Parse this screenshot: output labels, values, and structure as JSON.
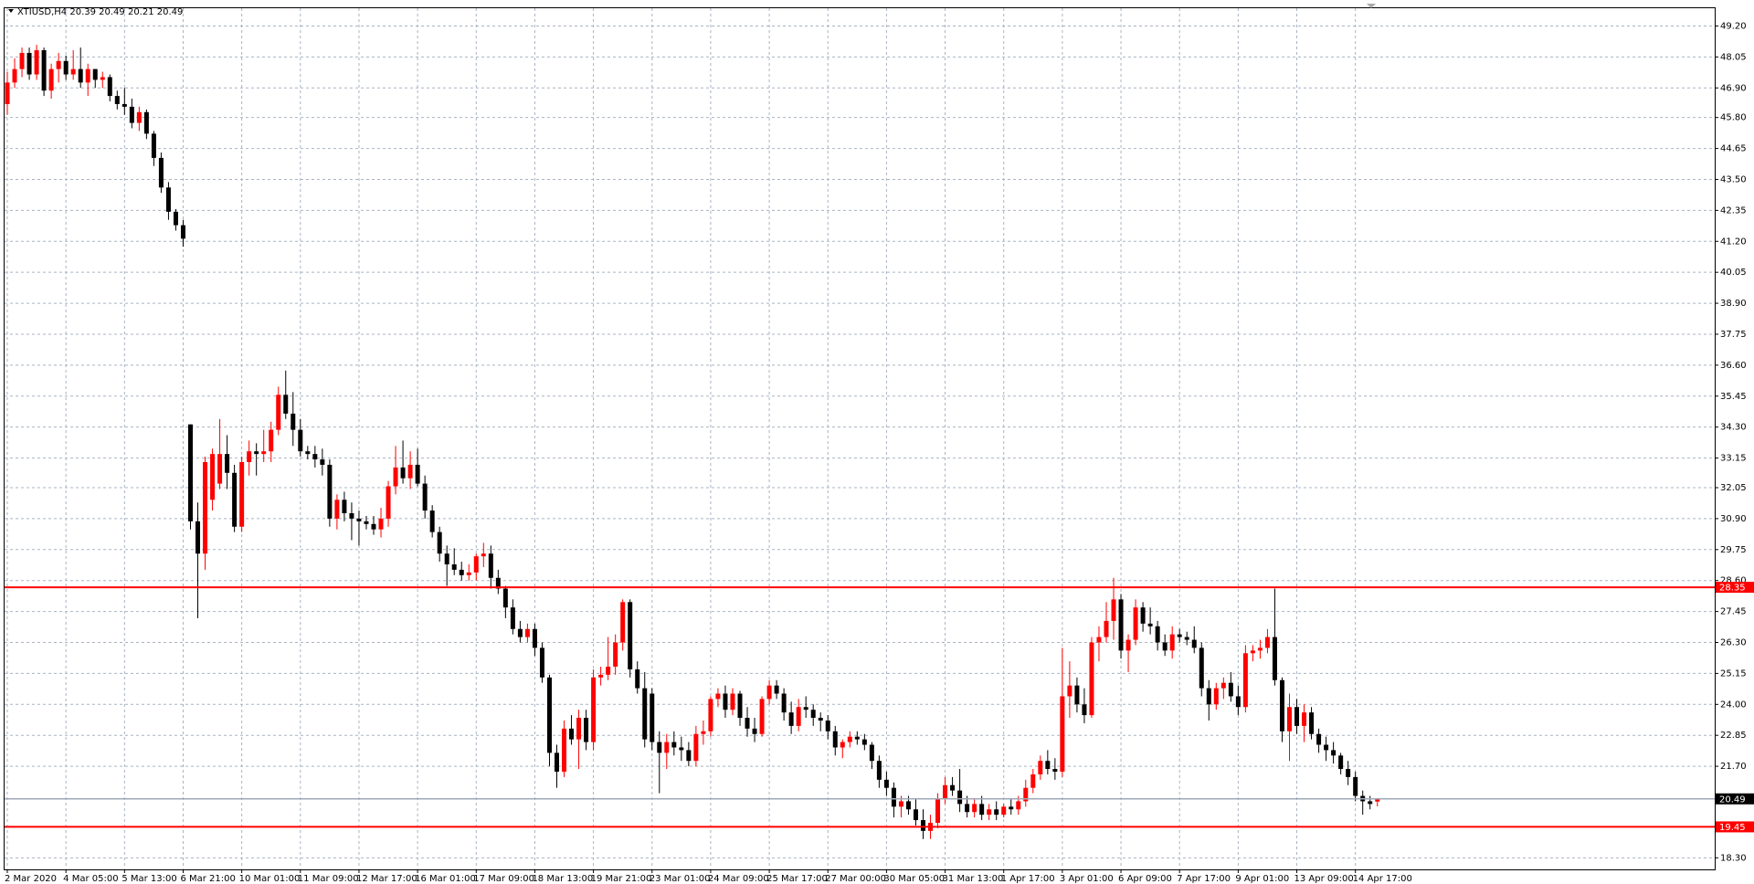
{
  "chart_data": {
    "type": "candlestick",
    "title": "XTIUSD,H4  20.39 20.49 20.21 20.49",
    "up_color": "#ff0000",
    "down_color": "#000000",
    "grid": true,
    "grid_color": "#a9b3c2",
    "ylim": [
      17.87,
      49.86
    ],
    "yticks": [
      {
        "value": 49.2,
        "label": "49.20"
      },
      48.05,
      {
        "value": 46.9,
        "label": "46.90"
      },
      {
        "value": 45.8,
        "label": "45.80"
      },
      44.65,
      {
        "value": 43.5,
        "label": "43.50"
      },
      42.35,
      {
        "value": 41.2,
        "label": "41.20"
      },
      40.05,
      {
        "value": 38.9,
        "label": "38.90"
      },
      37.75,
      {
        "value": 36.6,
        "label": "36.60"
      },
      35.45,
      {
        "value": 34.3,
        "label": "34.30"
      },
      33.15,
      32.05,
      {
        "value": 30.9,
        "label": "30.90"
      },
      29.75,
      {
        "value": 28.6,
        "label": "28.60"
      },
      27.45,
      {
        "value": 26.3,
        "label": "26.30"
      },
      25.15,
      {
        "value": 24.0,
        "label": "24.00"
      },
      22.85,
      {
        "value": 21.7,
        "label": "21.70"
      },
      {
        "value": 18.3,
        "label": "18.30"
      }
    ],
    "xticks": [
      {
        "value": 0,
        "label": "2 Mar 2020"
      },
      {
        "value": 8,
        "label": "4 Mar 05:00"
      },
      {
        "value": 16,
        "label": "5 Mar 13:00"
      },
      {
        "value": 24,
        "label": "6 Mar 21:00"
      },
      {
        "value": 32,
        "label": "10 Mar 01:00"
      },
      {
        "value": 40,
        "label": "11 Mar 09:00"
      },
      {
        "value": 48,
        "label": "12 Mar 17:00"
      },
      {
        "value": 56,
        "label": "16 Mar 01:00"
      },
      {
        "value": 64,
        "label": "17 Mar 09:00"
      },
      {
        "value": 72,
        "label": "18 Mar 13:00"
      },
      {
        "value": 80,
        "label": "19 Mar 21:00"
      },
      {
        "value": 88,
        "label": "23 Mar 01:00"
      },
      {
        "value": 96,
        "label": "24 Mar 09:00"
      },
      {
        "value": 104,
        "label": "25 Mar 17:00"
      },
      {
        "value": 112,
        "label": "27 Mar 00:00"
      },
      {
        "value": 120,
        "label": "30 Mar 05:00"
      },
      {
        "value": 128,
        "label": "31 Mar 13:00"
      },
      {
        "value": 136,
        "label": "1 Apr 17:00"
      },
      {
        "value": 144,
        "label": "3 Apr 01:00"
      },
      {
        "value": 152,
        "label": "6 Apr 09:00"
      },
      {
        "value": 160,
        "label": "7 Apr 17:00"
      },
      {
        "value": 168,
        "label": "9 Apr 01:00"
      },
      {
        "value": 176,
        "label": "13 Apr 09:00"
      },
      {
        "value": 184,
        "label": "14 Apr 17:00"
      }
    ],
    "hlines": [
      {
        "value": 28.35,
        "color": "#ff0000"
      },
      {
        "value": 19.45,
        "color": "#ff0000"
      },
      {
        "value": 20.49,
        "color": "#a0a8b8"
      }
    ],
    "ohlc": [
      [
        46.3,
        47.5,
        45.9,
        47.1
      ],
      [
        47.1,
        48.0,
        46.9,
        47.6
      ],
      [
        47.6,
        48.4,
        47.3,
        48.2
      ],
      [
        48.2,
        48.4,
        47.2,
        47.4
      ],
      [
        47.4,
        48.5,
        47.2,
        48.3
      ],
      [
        48.3,
        48.4,
        46.6,
        46.8
      ],
      [
        46.8,
        47.8,
        46.5,
        47.6
      ],
      [
        47.6,
        48.2,
        47.1,
        47.9
      ],
      [
        47.9,
        48.1,
        47.2,
        47.4
      ],
      [
        47.4,
        48.3,
        47.2,
        47.6
      ],
      [
        47.6,
        48.4,
        46.9,
        47.1
      ],
      [
        47.1,
        47.8,
        46.6,
        47.6
      ],
      [
        47.6,
        47.6,
        46.9,
        47.2
      ],
      [
        47.2,
        47.5,
        46.9,
        47.3
      ],
      [
        47.3,
        47.4,
        46.4,
        46.6
      ],
      [
        46.6,
        46.8,
        46.1,
        46.3
      ],
      [
        46.3,
        46.9,
        45.9,
        46.2
      ],
      [
        46.2,
        46.5,
        45.4,
        45.6
      ],
      [
        45.6,
        46.2,
        45.3,
        46.0
      ],
      [
        46.0,
        46.1,
        45.0,
        45.2
      ],
      [
        45.2,
        45.3,
        44.0,
        44.3
      ],
      [
        44.3,
        44.5,
        43.0,
        43.2
      ],
      [
        43.2,
        43.4,
        42.0,
        42.3
      ],
      [
        42.3,
        42.4,
        41.6,
        41.8
      ],
      [
        41.8,
        42.0,
        41.0,
        41.3
      ],
      [
        34.4,
        34.4,
        30.5,
        30.8
      ],
      [
        30.8,
        31.5,
        27.2,
        29.6
      ],
      [
        29.6,
        33.2,
        29.0,
        33.0
      ],
      [
        31.6,
        33.5,
        31.2,
        33.3
      ],
      [
        32.2,
        34.6,
        32.0,
        33.3
      ],
      [
        33.3,
        34.0,
        32.0,
        32.6
      ],
      [
        32.6,
        32.9,
        30.4,
        30.6
      ],
      [
        30.6,
        33.2,
        30.4,
        33.0
      ],
      [
        33.0,
        33.8,
        32.5,
        33.4
      ],
      [
        33.4,
        33.7,
        32.5,
        33.3
      ],
      [
        33.3,
        34.2,
        33.0,
        33.4
      ],
      [
        33.4,
        34.5,
        33.0,
        34.2
      ],
      [
        34.2,
        35.8,
        34.0,
        35.5
      ],
      [
        35.5,
        36.4,
        34.6,
        34.8
      ],
      [
        34.8,
        35.6,
        33.6,
        34.2
      ],
      [
        34.2,
        34.6,
        33.2,
        33.4
      ],
      [
        33.4,
        33.6,
        33.1,
        33.3
      ],
      [
        33.3,
        33.6,
        32.8,
        33.1
      ],
      [
        33.1,
        33.5,
        32.5,
        32.9
      ],
      [
        32.9,
        33.1,
        30.6,
        30.9
      ],
      [
        30.9,
        31.8,
        30.5,
        31.6
      ],
      [
        31.6,
        31.9,
        30.8,
        31.1
      ],
      [
        31.1,
        31.5,
        30.1,
        30.9
      ],
      [
        30.9,
        31.2,
        29.9,
        30.8
      ],
      [
        30.8,
        31.0,
        30.5,
        30.7
      ],
      [
        30.7,
        31.0,
        30.3,
        30.5
      ],
      [
        30.5,
        31.3,
        30.2,
        30.9
      ],
      [
        30.9,
        32.3,
        30.6,
        32.1
      ],
      [
        32.1,
        33.6,
        31.8,
        32.8
      ],
      [
        32.8,
        33.8,
        32.2,
        32.4
      ],
      [
        32.4,
        33.4,
        32.0,
        32.9
      ],
      [
        32.9,
        33.5,
        32.1,
        32.2
      ],
      [
        32.2,
        32.5,
        30.9,
        31.2
      ],
      [
        31.2,
        31.4,
        30.2,
        30.4
      ],
      [
        30.4,
        30.6,
        29.3,
        29.6
      ],
      [
        29.6,
        29.9,
        28.4,
        29.2
      ],
      [
        29.2,
        29.8,
        28.8,
        29.0
      ],
      [
        29.0,
        29.3,
        28.6,
        28.8
      ],
      [
        28.8,
        29.2,
        28.6,
        28.9
      ],
      [
        28.9,
        29.6,
        28.6,
        29.5
      ],
      [
        29.5,
        30.0,
        29.1,
        29.6
      ],
      [
        29.6,
        29.9,
        28.3,
        28.7
      ],
      [
        28.7,
        29.0,
        28.1,
        28.3
      ],
      [
        28.3,
        28.4,
        27.2,
        27.6
      ],
      [
        27.6,
        27.9,
        26.6,
        26.8
      ],
      [
        26.8,
        27.1,
        26.3,
        26.5
      ],
      [
        26.5,
        27.0,
        26.3,
        26.8
      ],
      [
        26.8,
        27.0,
        25.8,
        26.1
      ],
      [
        26.1,
        26.3,
        24.8,
        25.0
      ],
      [
        25.0,
        25.1,
        21.7,
        22.2
      ],
      [
        22.2,
        22.5,
        20.9,
        21.5
      ],
      [
        21.5,
        23.4,
        21.3,
        23.1
      ],
      [
        23.1,
        23.6,
        22.5,
        22.7
      ],
      [
        22.7,
        23.8,
        21.6,
        23.5
      ],
      [
        23.5,
        23.8,
        22.3,
        22.6
      ],
      [
        22.6,
        25.3,
        22.3,
        25.0
      ],
      [
        25.0,
        25.4,
        24.7,
        25.1
      ],
      [
        25.1,
        26.5,
        24.9,
        25.4
      ],
      [
        25.4,
        26.6,
        25.1,
        26.3
      ],
      [
        26.3,
        27.9,
        26.0,
        27.8
      ],
      [
        27.8,
        27.9,
        25.0,
        25.3
      ],
      [
        25.3,
        25.6,
        24.4,
        24.6
      ],
      [
        24.6,
        25.2,
        22.4,
        22.7
      ],
      [
        24.4,
        24.6,
        22.3,
        22.6
      ],
      [
        22.6,
        23.0,
        20.7,
        22.2
      ],
      [
        22.2,
        22.9,
        21.6,
        22.6
      ],
      [
        22.6,
        23.0,
        22.1,
        22.4
      ],
      [
        22.4,
        22.8,
        21.9,
        22.3
      ],
      [
        22.3,
        22.6,
        21.7,
        21.9
      ],
      [
        21.9,
        23.2,
        21.7,
        22.9
      ],
      [
        22.9,
        23.4,
        22.5,
        23.0
      ],
      [
        23.0,
        24.3,
        22.8,
        24.2
      ],
      [
        24.2,
        24.6,
        23.9,
        24.4
      ],
      [
        24.4,
        24.7,
        23.5,
        23.8
      ],
      [
        23.8,
        24.6,
        23.6,
        24.4
      ],
      [
        24.4,
        24.5,
        23.2,
        23.5
      ],
      [
        23.5,
        23.9,
        22.8,
        23.1
      ],
      [
        23.1,
        23.5,
        22.6,
        22.9
      ],
      [
        22.9,
        24.3,
        22.8,
        24.2
      ],
      [
        24.2,
        24.9,
        24.0,
        24.7
      ],
      [
        24.7,
        24.9,
        24.2,
        24.4
      ],
      [
        24.4,
        24.6,
        23.4,
        23.7
      ],
      [
        23.7,
        24.1,
        22.9,
        23.2
      ],
      [
        23.2,
        24.2,
        23.0,
        23.9
      ],
      [
        23.9,
        24.3,
        23.5,
        23.8
      ],
      [
        23.8,
        24.0,
        23.2,
        23.5
      ],
      [
        23.5,
        23.7,
        23.0,
        23.4
      ],
      [
        23.4,
        23.6,
        22.7,
        23.0
      ],
      [
        23.0,
        23.2,
        22.1,
        22.4
      ],
      [
        22.4,
        22.7,
        22.0,
        22.6
      ],
      [
        22.6,
        23.0,
        22.4,
        22.8
      ],
      [
        22.8,
        23.0,
        22.5,
        22.7
      ],
      [
        22.7,
        22.9,
        22.3,
        22.5
      ],
      [
        22.5,
        22.6,
        21.6,
        21.9
      ],
      [
        21.9,
        22.1,
        20.9,
        21.2
      ],
      [
        21.2,
        21.5,
        20.6,
        20.9
      ],
      [
        20.9,
        21.1,
        19.8,
        20.2
      ],
      [
        20.2,
        20.6,
        19.8,
        20.4
      ],
      [
        20.4,
        20.6,
        19.9,
        20.1
      ],
      [
        20.1,
        20.5,
        19.5,
        19.7
      ],
      [
        19.7,
        20.1,
        19.0,
        19.3
      ],
      [
        19.3,
        19.9,
        19.0,
        19.6
      ],
      [
        19.6,
        20.7,
        19.4,
        20.5
      ],
      [
        20.5,
        21.3,
        20.3,
        21.0
      ],
      [
        21.0,
        21.3,
        20.6,
        20.8
      ],
      [
        20.8,
        21.6,
        20.0,
        20.3
      ],
      [
        20.3,
        20.6,
        19.8,
        20.0
      ],
      [
        20.0,
        20.5,
        19.8,
        20.3
      ],
      [
        20.3,
        20.6,
        19.7,
        19.9
      ],
      [
        19.9,
        20.3,
        19.7,
        20.1
      ],
      [
        20.1,
        20.4,
        19.7,
        19.9
      ],
      [
        19.9,
        20.3,
        19.8,
        20.2
      ],
      [
        20.2,
        20.5,
        19.9,
        20.1
      ],
      [
        20.1,
        20.6,
        19.9,
        20.4
      ],
      [
        20.4,
        21.2,
        20.2,
        20.9
      ],
      [
        20.9,
        21.6,
        20.7,
        21.4
      ],
      [
        21.4,
        22.1,
        21.2,
        21.9
      ],
      [
        21.9,
        22.3,
        21.4,
        21.6
      ],
      [
        21.6,
        22.0,
        21.2,
        21.5
      ],
      [
        21.5,
        26.1,
        21.3,
        24.3
      ],
      [
        24.3,
        25.6,
        23.5,
        24.7
      ],
      [
        24.7,
        25.0,
        23.7,
        24.0
      ],
      [
        24.0,
        24.6,
        23.3,
        23.6
      ],
      [
        23.6,
        26.5,
        23.5,
        26.3
      ],
      [
        26.3,
        26.9,
        25.6,
        26.5
      ],
      [
        26.5,
        27.8,
        26.3,
        27.1
      ],
      [
        27.1,
        28.7,
        26.4,
        27.9
      ],
      [
        27.9,
        28.1,
        25.7,
        26.0
      ],
      [
        26.0,
        26.6,
        25.2,
        26.4
      ],
      [
        26.4,
        27.9,
        26.2,
        27.6
      ],
      [
        27.6,
        27.8,
        26.7,
        27.0
      ],
      [
        27.0,
        27.6,
        26.6,
        26.9
      ],
      [
        26.9,
        27.1,
        26.0,
        26.3
      ],
      [
        26.3,
        26.6,
        25.8,
        26.0
      ],
      [
        26.0,
        26.9,
        25.7,
        26.6
      ],
      [
        26.6,
        26.8,
        26.3,
        26.5
      ],
      [
        26.5,
        26.7,
        26.2,
        26.4
      ],
      [
        26.4,
        26.9,
        25.9,
        26.1
      ],
      [
        26.1,
        26.3,
        24.3,
        24.6
      ],
      [
        24.6,
        24.9,
        23.4,
        24.0
      ],
      [
        24.0,
        24.8,
        23.8,
        24.6
      ],
      [
        24.6,
        25.0,
        24.2,
        24.8
      ],
      [
        24.8,
        25.2,
        24.1,
        24.3
      ],
      [
        24.3,
        24.7,
        23.6,
        23.9
      ],
      [
        23.9,
        26.2,
        23.7,
        25.9
      ],
      [
        25.9,
        26.2,
        25.6,
        26.0
      ],
      [
        26.0,
        26.4,
        25.7,
        26.1
      ],
      [
        26.1,
        26.8,
        25.9,
        26.5
      ],
      [
        26.5,
        28.3,
        24.7,
        24.9
      ],
      [
        24.9,
        25.0,
        22.6,
        23.0
      ],
      [
        23.0,
        24.4,
        21.9,
        23.9
      ],
      [
        23.9,
        24.2,
        22.9,
        23.2
      ],
      [
        23.2,
        24.0,
        22.6,
        23.7
      ],
      [
        23.7,
        23.9,
        22.7,
        22.9
      ],
      [
        22.9,
        23.1,
        22.2,
        22.5
      ],
      [
        22.5,
        22.8,
        21.9,
        22.3
      ],
      [
        22.3,
        22.6,
        21.8,
        22.1
      ],
      [
        22.1,
        22.2,
        21.4,
        21.6
      ],
      [
        21.6,
        21.9,
        21.0,
        21.3
      ],
      [
        21.3,
        21.5,
        20.4,
        20.6
      ],
      [
        20.6,
        20.8,
        19.9,
        20.4
      ],
      [
        20.4,
        20.6,
        20.1,
        20.3
      ],
      [
        20.39,
        20.49,
        20.21,
        20.49
      ]
    ]
  }
}
